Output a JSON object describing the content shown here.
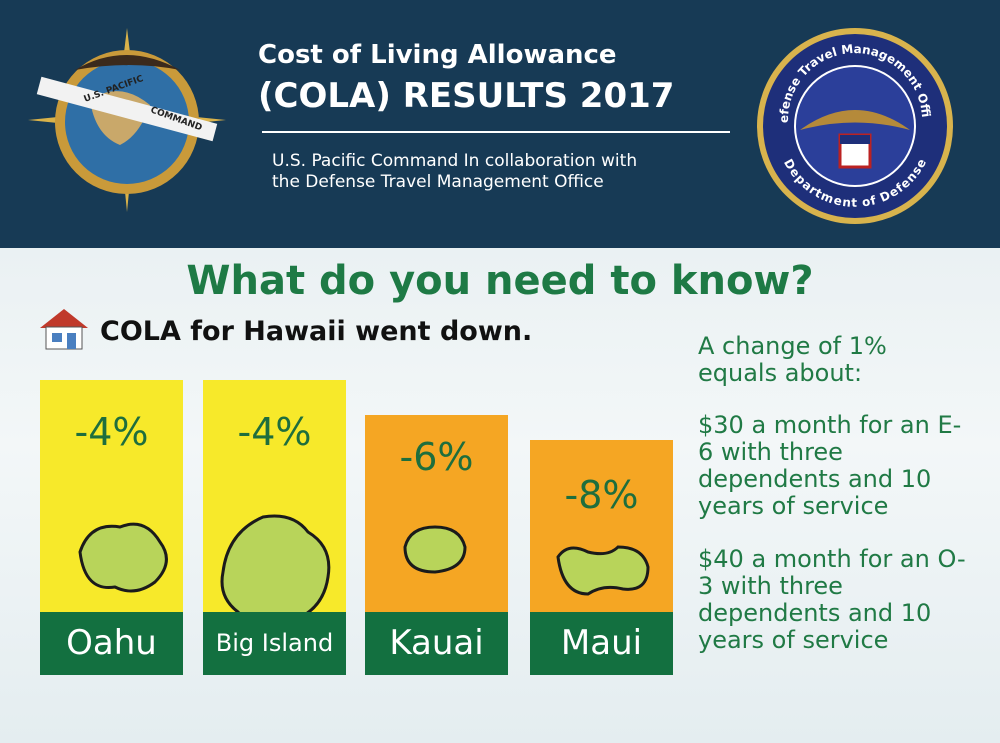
{
  "header": {
    "title_line_1": "Cost of Living Allowance",
    "title_line_2": "(COLA) RESULTS 2017",
    "subtitle_line_1": "U.S. Pacific Command In collaboration with",
    "subtitle_line_2": "the Defense Travel Management Office",
    "left_logo": {
      "ribbon_1": "U.S. PACIFIC",
      "ribbon_2": "COMMAND"
    },
    "right_logo": {
      "ring_top": "Defense Travel Management Office",
      "ring_bottom": "Department of Defense"
    }
  },
  "heading": "What do you need to know?",
  "subheading": "COLA for Hawaii went down.",
  "cards": [
    {
      "change": "-4%",
      "name": "Oahu"
    },
    {
      "change": "-4%",
      "name": "Big Island"
    },
    {
      "change": "-6%",
      "name": "Kauai"
    },
    {
      "change": "-8%",
      "name": "Maui"
    }
  ],
  "notes": [
    "A change of 1% equals about:",
    "$30 a month for an E-6 with three dependents and 10 years of service",
    "$40 a month for an O-3 with three dependents and 10 years of service"
  ]
}
